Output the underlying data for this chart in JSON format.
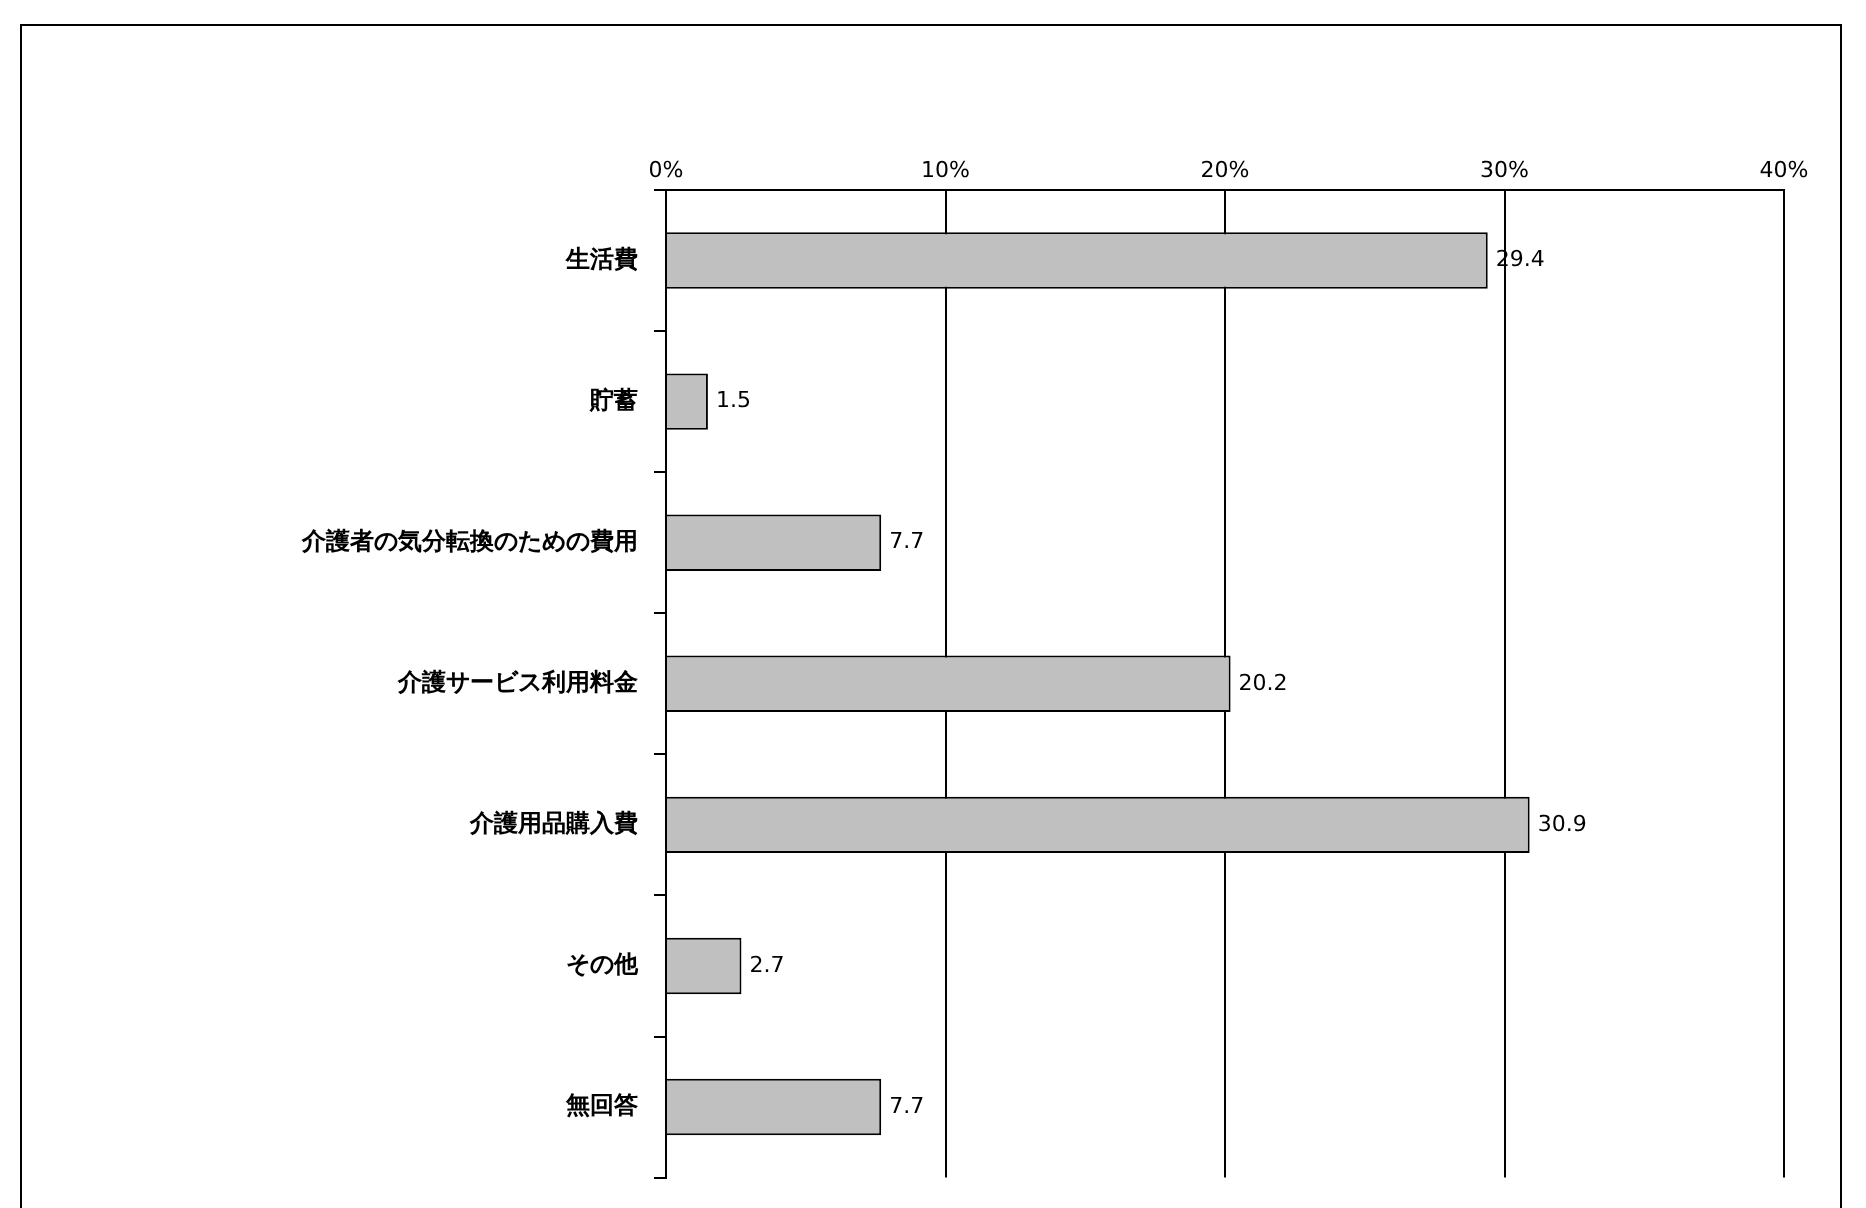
{
  "chart_data": {
    "type": "bar",
    "orientation": "horizontal",
    "categories": [
      "生活費",
      "貯蓄",
      "介護者の気分転換のための費用",
      "介護サービス利用料金",
      "介護用品購入費",
      "その他",
      "無回答"
    ],
    "values": [
      29.4,
      1.5,
      7.7,
      20.2,
      30.9,
      2.7,
      7.7
    ],
    "color": "#c0c0c0",
    "xlim": [
      0,
      40
    ],
    "xticks": [
      {
        "value": 0,
        "label": "0%"
      },
      {
        "value": 10,
        "label": "10%"
      },
      {
        "value": 20,
        "label": "20%"
      },
      {
        "value": 30,
        "label": "30%"
      },
      {
        "value": 40,
        "label": "40%"
      }
    ],
    "grid": "x",
    "legend": false,
    "data_labels": true
  }
}
